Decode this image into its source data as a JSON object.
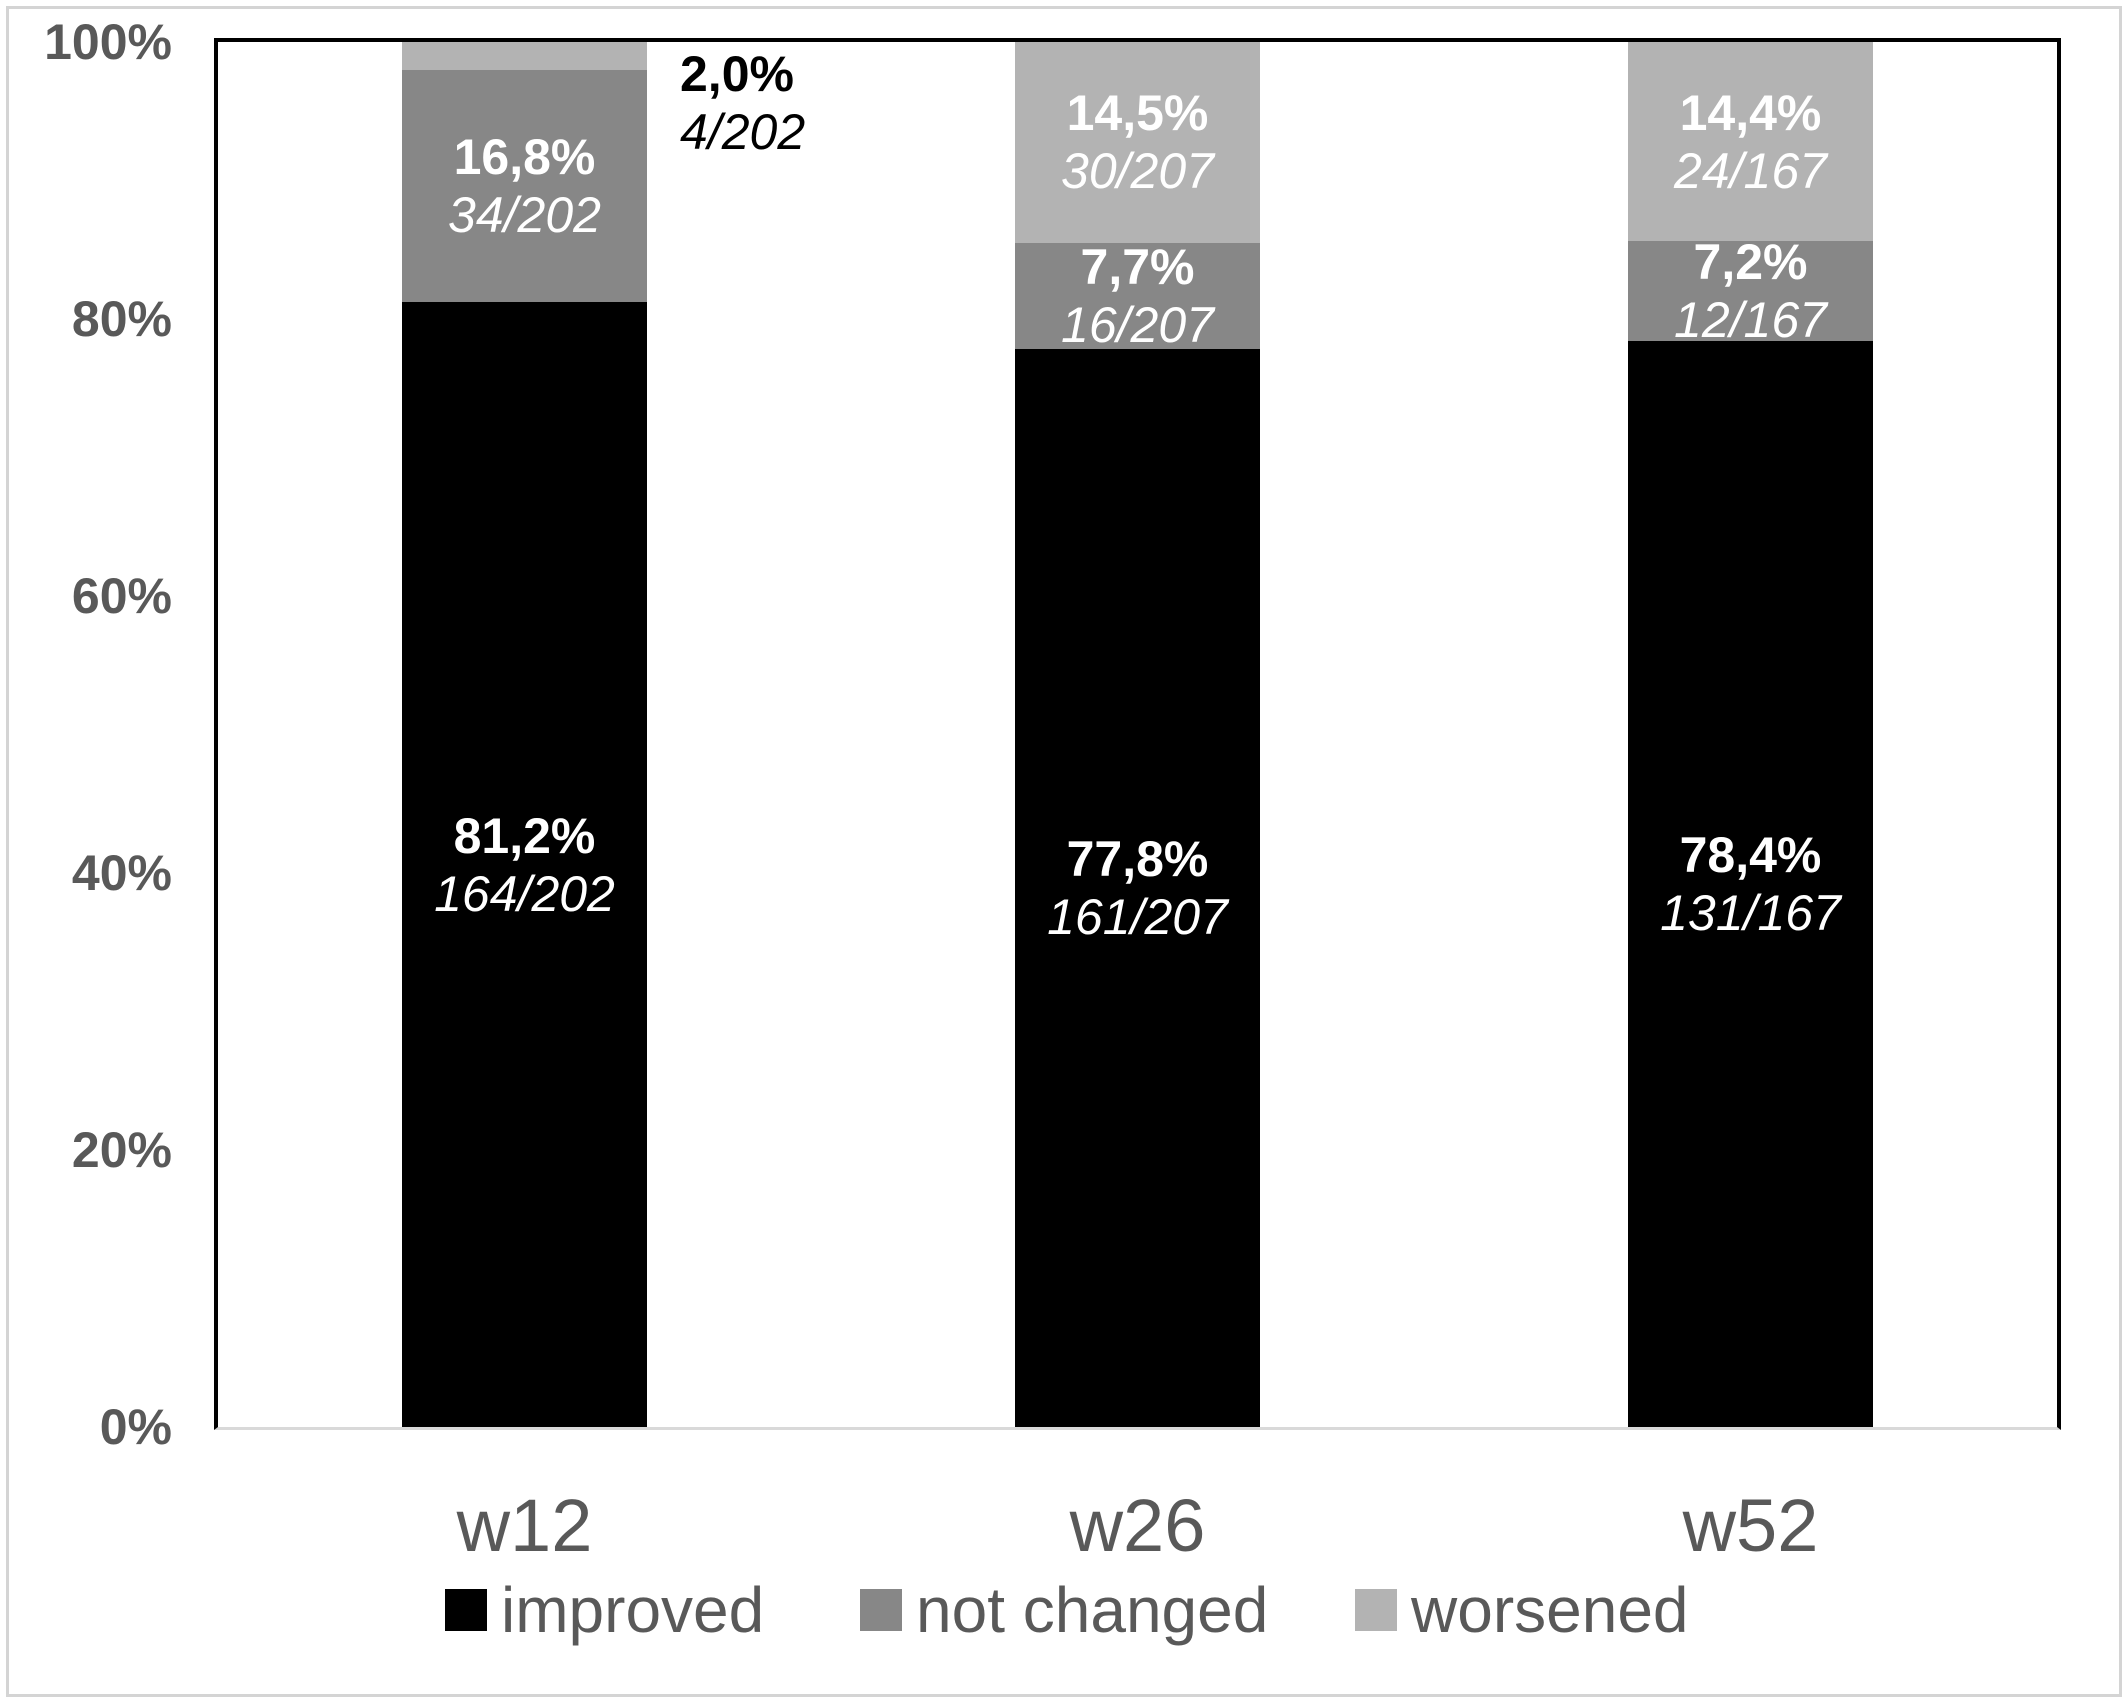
{
  "chart_data": {
    "type": "bar",
    "stacked": true,
    "title": "",
    "xlabel": "",
    "ylabel": "",
    "categories": [
      "w12",
      "w26",
      "w52"
    ],
    "denominators": [
      202,
      207,
      167
    ],
    "series": [
      {
        "name": "improved",
        "color": "#000000",
        "label_color": "#ffffff",
        "values": [
          81.2,
          77.8,
          78.4
        ],
        "counts": [
          164,
          161,
          131
        ],
        "labels": [
          {
            "pct": "81,2%",
            "frac": "164/202"
          },
          {
            "pct": "77,8%",
            "frac": "161/207"
          },
          {
            "pct": "78,4%",
            "frac": "131/167"
          }
        ]
      },
      {
        "name": "not changed",
        "color": "#878787",
        "label_color": "#ffffff",
        "values": [
          16.8,
          7.7,
          7.2
        ],
        "counts": [
          34,
          16,
          12
        ],
        "labels": [
          {
            "pct": "16,8%",
            "frac": "34/202"
          },
          {
            "pct": "7,7%",
            "frac": "16/207"
          },
          {
            "pct": "7,2%",
            "frac": "12/167"
          }
        ]
      },
      {
        "name": "worsened",
        "color": "#b3b3b3",
        "label_color": "#ffffff",
        "values": [
          2.0,
          14.5,
          14.4
        ],
        "counts": [
          4,
          30,
          24
        ],
        "labels": [
          {
            "pct": "2,0%",
            "frac": "4/202",
            "outside": true
          },
          {
            "pct": "14,5%",
            "frac": "30/207"
          },
          {
            "pct": "14,4%",
            "frac": "24/167"
          }
        ]
      }
    ],
    "ylim": [
      0,
      100
    ],
    "yticks": [
      {
        "value": 0,
        "label": "0%"
      },
      {
        "value": 20,
        "label": "20%"
      },
      {
        "value": 40,
        "label": "40%"
      },
      {
        "value": 60,
        "label": "60%"
      },
      {
        "value": 80,
        "label": "80%"
      },
      {
        "value": 100,
        "label": "100%"
      }
    ],
    "grid": false,
    "legend_position": "bottom"
  },
  "legend": {
    "items": [
      {
        "label": "improved",
        "color": "#000000"
      },
      {
        "label": "not changed",
        "color": "#878787"
      },
      {
        "label": "worsened",
        "color": "#b3b3b3"
      }
    ]
  },
  "colors": {
    "axis_text": "#595959",
    "frame_border": "#d4d4d4",
    "plot_border": "#000000",
    "baseline": "#d9d9d9",
    "outside_label_text": "#000000"
  }
}
